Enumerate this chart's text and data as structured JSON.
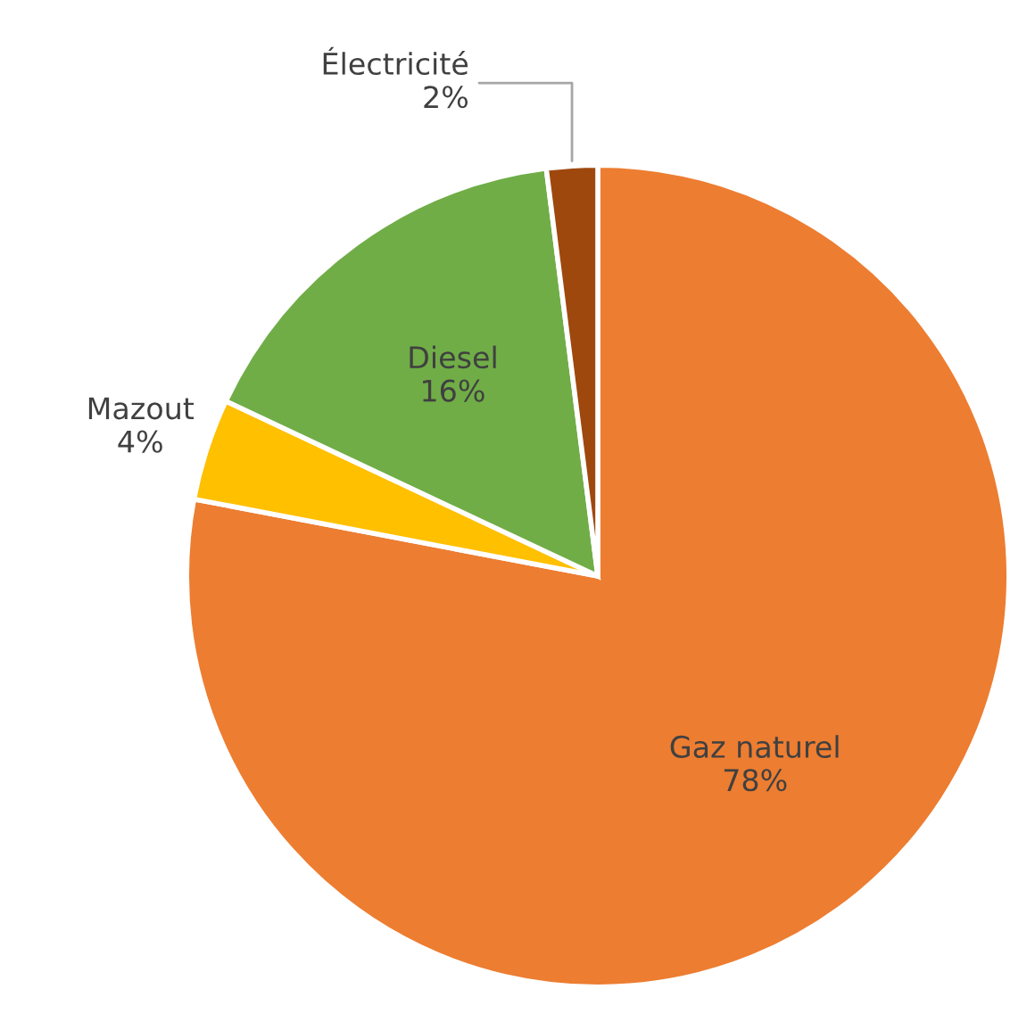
{
  "chart_data": {
    "type": "pie",
    "categories": [
      "Gaz naturel",
      "Mazout",
      "Diesel",
      "Électricité"
    ],
    "values": [
      78,
      4,
      16,
      2
    ],
    "value_labels": [
      "78%",
      "4%",
      "16%",
      "2%"
    ],
    "colors": [
      "#ed7d31",
      "#ffc000",
      "#70ad47",
      "#9e480e"
    ]
  }
}
